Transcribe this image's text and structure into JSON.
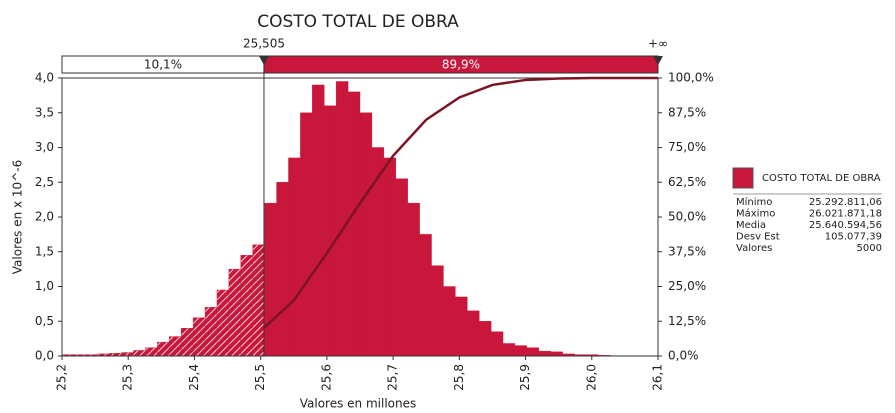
{
  "chart_data": {
    "type": "histogram",
    "title": "COSTO TOTAL DE OBRA",
    "x_label": "Valores en millones",
    "y_label": "Valores en x 10^-6",
    "color": "#c8173a",
    "line_color": "#7b1425",
    "bins": [
      25.2,
      25.218,
      25.236,
      25.254,
      25.272,
      25.29,
      25.308,
      25.326,
      25.344,
      25.362,
      25.38,
      25.398,
      25.416,
      25.434,
      25.452,
      25.47,
      25.488,
      25.506,
      25.524,
      25.542,
      25.56,
      25.578,
      25.596,
      25.614,
      25.632,
      25.65,
      25.668,
      25.686,
      25.704,
      25.722,
      25.74,
      25.758,
      25.776,
      25.794,
      25.812,
      25.83,
      25.848,
      25.866,
      25.884,
      25.902,
      25.92,
      25.938,
      25.956,
      25.974,
      25.992,
      26.01,
      26.028,
      26.046,
      26.064,
      26.082,
      26.1
    ],
    "counts": [
      0.02,
      0.02,
      0.02,
      0.03,
      0.04,
      0.05,
      0.08,
      0.12,
      0.2,
      0.28,
      0.4,
      0.55,
      0.7,
      0.95,
      1.25,
      1.45,
      1.6,
      2.2,
      2.5,
      2.85,
      3.5,
      3.9,
      3.6,
      3.95,
      3.8,
      3.5,
      3.0,
      2.85,
      2.55,
      2.2,
      1.75,
      1.3,
      1.0,
      0.85,
      0.65,
      0.5,
      0.35,
      0.18,
      0.15,
      0.12,
      0.07,
      0.06,
      0.03,
      0.02,
      0.02,
      0.01,
      0,
      0,
      0,
      0
    ],
    "cumulative": {
      "x": [
        25.505,
        25.55,
        25.6,
        25.65,
        25.7,
        25.75,
        25.8,
        25.85,
        25.9,
        25.95,
        26.0,
        26.1
      ],
      "values": [
        10.1,
        20,
        37,
        55,
        72,
        85,
        93,
        97.5,
        99.3,
        99.8,
        100,
        100
      ],
      "axis": "y2"
    },
    "delimiter": {
      "value": 25.505,
      "label": "25,505"
    },
    "right_end_label": "+∞",
    "left_percent": "10,1%",
    "right_percent": "89,9%",
    "xlim": [
      25.2,
      26.1
    ],
    "xticks": [
      {
        "value": 25.2,
        "label": "25,2"
      },
      {
        "value": 25.3,
        "label": "25,3"
      },
      {
        "value": 25.4,
        "label": "25,4"
      },
      {
        "value": 25.5,
        "label": "25,5"
      },
      {
        "value": 25.6,
        "label": "25,6"
      },
      {
        "value": 25.7,
        "label": "25,7"
      },
      {
        "value": 25.8,
        "label": "25,8"
      },
      {
        "value": 25.9,
        "label": "25,9"
      },
      {
        "value": 26.0,
        "label": "26,0"
      },
      {
        "value": 26.1,
        "label": "26,1"
      }
    ],
    "ylim": [
      0,
      4
    ],
    "yticks": [
      {
        "value": 0,
        "label": "0,0"
      },
      {
        "value": 0.5,
        "label": "0,5"
      },
      {
        "value": 1,
        "label": "1,0"
      },
      {
        "value": 1.5,
        "label": "1,5"
      },
      {
        "value": 2,
        "label": "2,0"
      },
      {
        "value": 2.5,
        "label": "2,5"
      },
      {
        "value": 3,
        "label": "3,0"
      },
      {
        "value": 3.5,
        "label": "3,5"
      },
      {
        "value": 4,
        "label": "4,0"
      }
    ],
    "y2lim": [
      0,
      100
    ],
    "y2ticks": [
      {
        "value": 0,
        "label": "0,0%"
      },
      {
        "value": 12.5,
        "label": "12,5%"
      },
      {
        "value": 25,
        "label": "25,0%"
      },
      {
        "value": 37.5,
        "label": "37,5%"
      },
      {
        "value": 50,
        "label": "50,0%"
      },
      {
        "value": 62.5,
        "label": "62,5%"
      },
      {
        "value": 75,
        "label": "75,0%"
      },
      {
        "value": 87.5,
        "label": "87,5%"
      },
      {
        "value": 100,
        "label": "100,0%"
      }
    ],
    "legend": {
      "name": "COSTO TOTAL DE OBRA",
      "stats": [
        {
          "label": "Mínimo",
          "value": "25.292.811,06"
        },
        {
          "label": "Máximo",
          "value": "26.021.871,18"
        },
        {
          "label": "Media",
          "value": "25.640.594,56"
        },
        {
          "label": "Desv Est",
          "value": "105.077,39"
        },
        {
          "label": "Valores",
          "value": "5000"
        }
      ]
    }
  }
}
